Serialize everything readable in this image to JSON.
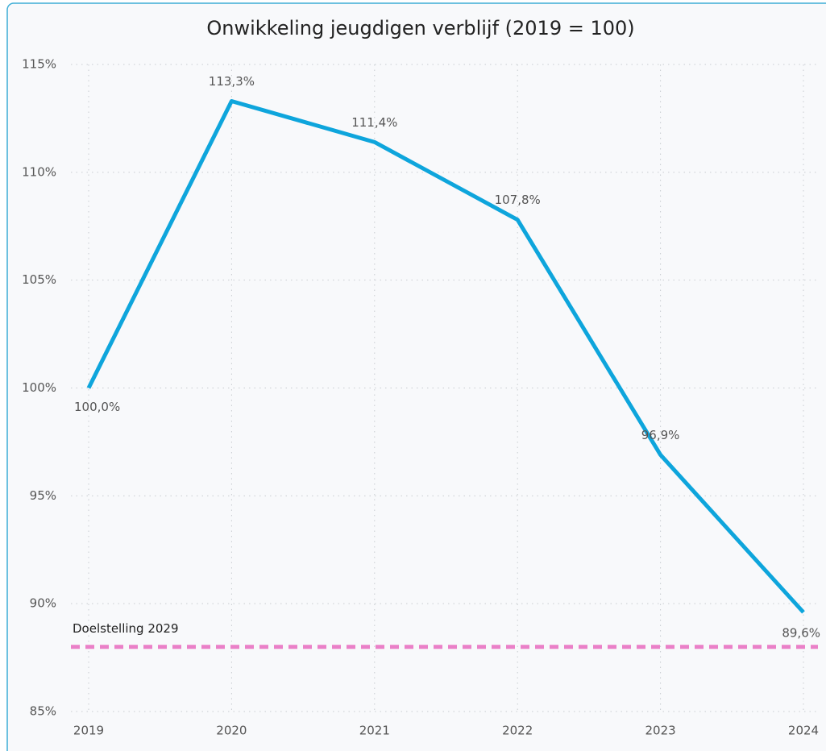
{
  "chart_data": {
    "type": "line",
    "title": "Onwikkeling jeugdigen verblijf (2019 = 100)",
    "categories": [
      "2019",
      "2020",
      "2021",
      "2022",
      "2023",
      "2024"
    ],
    "series": [
      {
        "name": "Jeugdigen verblijf",
        "color": "#0ea5dc",
        "values": [
          100.0,
          113.3,
          111.4,
          107.8,
          96.9,
          89.6
        ],
        "value_labels": [
          "100,0%",
          "113,3%",
          "111,4%",
          "107,8%",
          "96,9%",
          "89,6%"
        ]
      }
    ],
    "target": {
      "label": "Doelstelling 2029",
      "value": 88,
      "color": "#ea80c8"
    },
    "ylim": [
      85,
      115
    ],
    "yticks": [
      {
        "value": 85,
        "label": "85%"
      },
      {
        "value": 90,
        "label": "90%"
      },
      {
        "value": 95,
        "label": "95%"
      },
      {
        "value": 100,
        "label": "100%"
      },
      {
        "value": 105,
        "label": "105%"
      },
      {
        "value": 110,
        "label": "110%"
      },
      {
        "value": 115,
        "label": "115%"
      }
    ],
    "grid": true
  }
}
